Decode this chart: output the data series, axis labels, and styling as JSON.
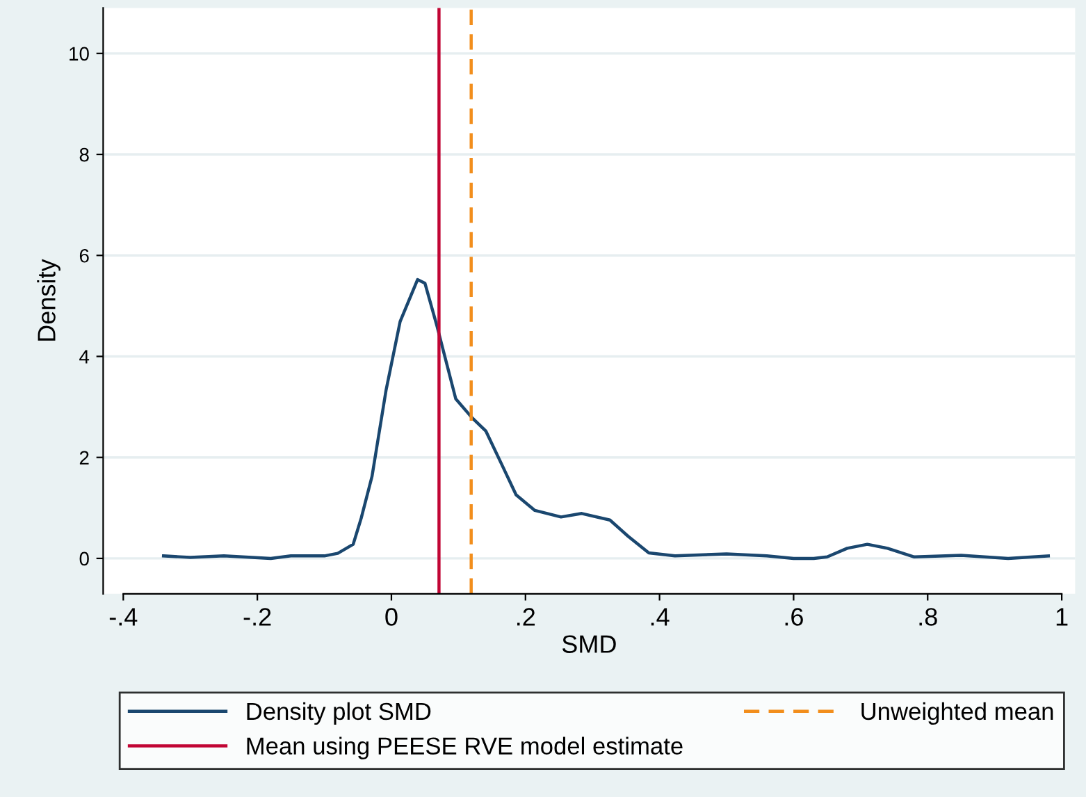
{
  "chart_data": {
    "type": "line",
    "xlabel": "SMD",
    "ylabel": "Density",
    "xlim": [
      -0.43,
      1.02
    ],
    "ylim": [
      -0.7,
      10.9
    ],
    "xticks": [
      {
        "value": -0.4,
        "label": "-.4"
      },
      {
        "value": -0.2,
        "label": "-.2"
      },
      0,
      {
        "value": 0.2,
        "label": ".2"
      },
      {
        "value": 0.4,
        "label": ".4"
      },
      {
        "value": 0.6,
        "label": ".6"
      },
      {
        "value": 0.8,
        "label": ".8"
      },
      1
    ],
    "yticks": [
      0,
      2,
      4,
      6,
      8,
      10
    ],
    "grid": "y",
    "legend": "bottom",
    "series": [
      {
        "name": "Density plot SMD",
        "color": "#1a476f",
        "line_style": "solid",
        "x": [
          -0.34,
          -0.3,
          -0.25,
          -0.18,
          -0.15,
          -0.1,
          -0.08,
          -0.057,
          -0.045,
          -0.029,
          -0.008,
          0.013,
          0.039,
          0.05,
          0.068,
          0.096,
          0.12,
          0.141,
          0.165,
          0.186,
          0.214,
          0.253,
          0.284,
          0.326,
          0.353,
          0.384,
          0.423,
          0.5,
          0.56,
          0.6,
          0.63,
          0.65,
          0.68,
          0.71,
          0.74,
          0.78,
          0.85,
          0.92,
          0.98
        ],
        "values": [
          0.05,
          0.02,
          0.05,
          0.0,
          0.05,
          0.05,
          0.1,
          0.28,
          0.8,
          1.62,
          3.33,
          4.69,
          5.52,
          5.45,
          4.6,
          3.16,
          2.79,
          2.52,
          1.85,
          1.26,
          0.95,
          0.82,
          0.89,
          0.76,
          0.44,
          0.11,
          0.05,
          0.09,
          0.05,
          0.0,
          0.0,
          0.03,
          0.2,
          0.28,
          0.2,
          0.03,
          0.06,
          0.0,
          0.05
        ]
      }
    ],
    "ref_lines": [
      {
        "axis": "x",
        "value": 0.071,
        "label": "Mean using PEESE RVE model estimate",
        "color": "#c10534",
        "line_style": "solid"
      },
      {
        "axis": "x",
        "value": 0.119,
        "label": "Unweighted mean",
        "color": "#f28e1c",
        "line_style": "dashed"
      }
    ]
  }
}
